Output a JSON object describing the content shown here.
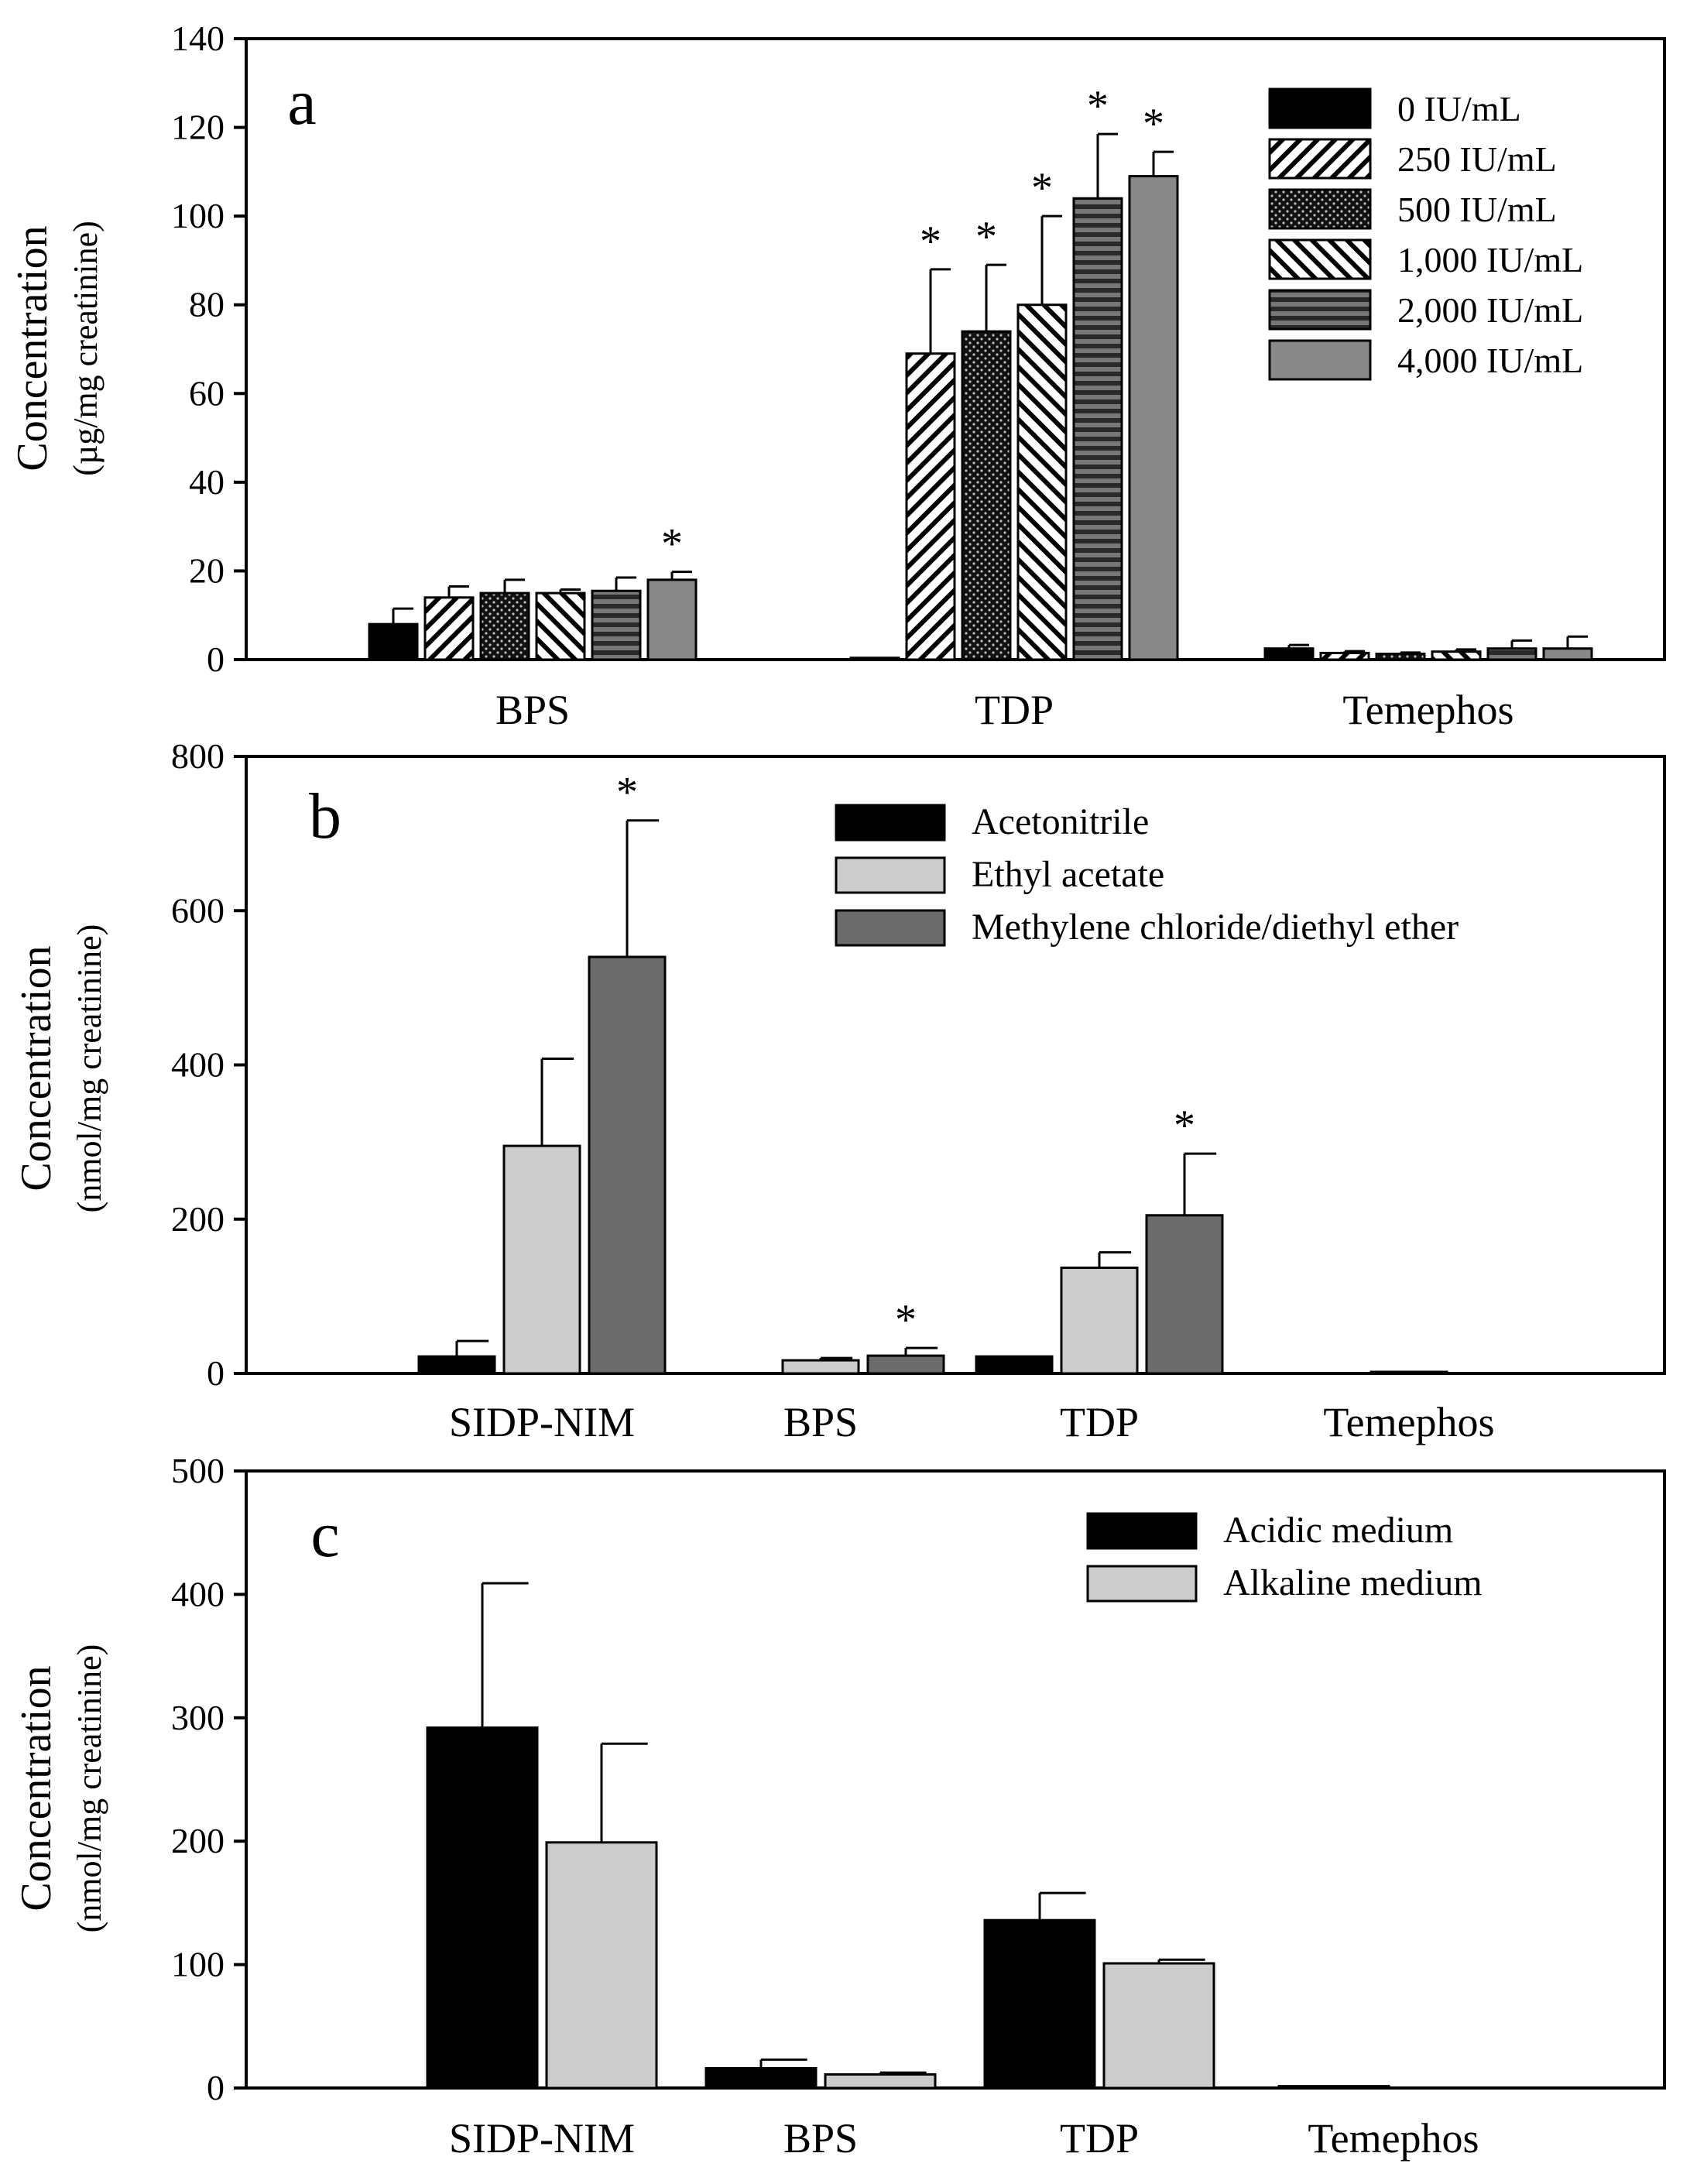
{
  "chart_data": [
    {
      "panel_label": "a",
      "type": "bar",
      "ylabel_line1": "Concentration",
      "ylabel_line2": "(µg/mg creatinine)",
      "ylim": [
        0,
        140
      ],
      "yticks": [
        0,
        20,
        40,
        60,
        80,
        100,
        120,
        140
      ],
      "categories": [
        "BPS",
        "TDP",
        "Temephos"
      ],
      "legend_position": "top-right",
      "series": [
        {
          "name": "0 IU/mL",
          "color": "#000000",
          "pattern": "solid-black",
          "values": [
            8,
            0.4,
            2.5
          ],
          "errors": [
            3.5,
            0,
            0.8
          ],
          "significant": [
            false,
            false,
            false
          ]
        },
        {
          "name": "250 IU/mL",
          "color": "#000000",
          "pattern": "diagonal-fwd",
          "values": [
            14,
            69,
            1.5
          ],
          "errors": [
            2.5,
            19,
            0.4
          ],
          "significant": [
            false,
            true,
            false
          ]
        },
        {
          "name": "500 IU/mL",
          "color": "#000000",
          "pattern": "dots",
          "values": [
            15,
            74,
            1.3
          ],
          "errors": [
            3,
            15,
            0.3
          ],
          "significant": [
            false,
            true,
            false
          ]
        },
        {
          "name": "1,000 IU/mL",
          "color": "#000000",
          "pattern": "diagonal-back",
          "values": [
            15,
            80,
            1.8
          ],
          "errors": [
            0.8,
            20,
            0.5
          ],
          "significant": [
            false,
            true,
            false
          ]
        },
        {
          "name": "2,000 IU/mL",
          "color": "#555555",
          "pattern": "horizontal",
          "values": [
            15.5,
            104,
            2.5
          ],
          "errors": [
            3,
            14.5,
            1.8
          ],
          "significant": [
            false,
            true,
            false
          ]
        },
        {
          "name": "4,000 IU/mL",
          "color": "#888888",
          "pattern": "solid-gray",
          "values": [
            18,
            109,
            2.5
          ],
          "errors": [
            1.8,
            5.5,
            2.7
          ],
          "significant": [
            true,
            true,
            false
          ]
        }
      ]
    },
    {
      "panel_label": "b",
      "type": "bar",
      "ylabel_line1": "Concentration",
      "ylabel_line2": "(nmol/mg creatinine)",
      "ylim": [
        0,
        800
      ],
      "yticks": [
        0,
        200,
        400,
        600,
        800
      ],
      "categories": [
        "SIDP-NIM",
        "BPS",
        "TDP",
        "Temephos"
      ],
      "legend_position": "top-right",
      "series": [
        {
          "name": "Acetonitrile",
          "color": "#000000",
          "pattern": "solid-black",
          "values": [
            22,
            0,
            22,
            0
          ],
          "errors": [
            20,
            0,
            0,
            0
          ],
          "significant": [
            false,
            false,
            false,
            false
          ]
        },
        {
          "name": "Ethyl acetate",
          "color": "#cccccc",
          "pattern": "solid-light",
          "values": [
            295,
            17,
            137,
            2
          ],
          "errors": [
            113,
            3,
            20,
            0
          ],
          "significant": [
            false,
            false,
            false,
            false
          ]
        },
        {
          "name": "Methylene chloride/diethyl ether",
          "color": "#6b6b6b",
          "pattern": "solid-dark",
          "values": [
            540,
            23,
            205,
            0
          ],
          "errors": [
            177,
            10,
            80,
            0
          ],
          "significant": [
            true,
            true,
            true,
            false
          ]
        }
      ]
    },
    {
      "panel_label": "c",
      "type": "bar",
      "ylabel_line1": "Concentration",
      "ylabel_line2": "(nmol/mg creatinine)",
      "ylim": [
        0,
        500
      ],
      "yticks": [
        0,
        100,
        200,
        300,
        400,
        500
      ],
      "categories": [
        "SIDP-NIM",
        "BPS",
        "TDP",
        "Temephos"
      ],
      "legend_position": "top-right",
      "series": [
        {
          "name": "Acidic medium",
          "color": "#000000",
          "pattern": "solid-black",
          "values": [
            292,
            16,
            136,
            1.5
          ],
          "errors": [
            117,
            7,
            22,
            0
          ],
          "significant": [
            false,
            false,
            false,
            false
          ]
        },
        {
          "name": "Alkaline medium",
          "color": "#cccccc",
          "pattern": "solid-light",
          "values": [
            199,
            11,
            101,
            0
          ],
          "errors": [
            80,
            1.5,
            3,
            0
          ],
          "significant": [
            false,
            false,
            false,
            false
          ]
        }
      ]
    }
  ]
}
